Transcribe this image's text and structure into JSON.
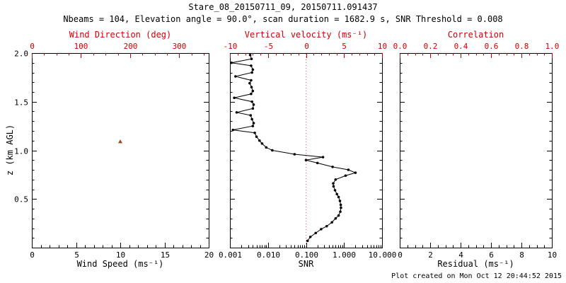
{
  "title": "Stare_08_20150711_09, 20150711.091437",
  "subtitle": "Nbeams = 104, Elevation angle = 90.0°, scan duration = 1682.9 s, SNR Threshold = 0.008",
  "footer": "Plot created on Mon Oct 12 20:44:52 2015",
  "colors": {
    "red": "#cc0000",
    "black": "#000000",
    "marker": "#000000",
    "wind_marker": "#994422",
    "vline": "#dd6666"
  },
  "chart_data": [
    {
      "id": "wind",
      "type": "scatter",
      "xlabel": "Wind Speed (ms⁻¹)",
      "x2label": "Wind Direction (deg)",
      "ylabel": "z (km AGL)",
      "xlim": [
        0,
        20
      ],
      "x2lim": [
        0,
        360
      ],
      "ylim": [
        0,
        2
      ],
      "xticks": {
        "values": [
          0,
          5,
          10,
          15,
          20
        ],
        "labels": [
          "0",
          "5",
          "10",
          "15",
          "20"
        ],
        "minor": 1
      },
      "x2ticks": {
        "values": [
          0,
          100,
          200,
          300
        ],
        "labels": [
          "0",
          "100",
          "200",
          "300"
        ],
        "minor": 25
      },
      "yticks": {
        "values": [
          0,
          0.5,
          1,
          1.5,
          2
        ],
        "labels": [
          "",
          "0.5",
          "1.0",
          "1.5",
          "2.0"
        ],
        "minor": 0.1
      },
      "points": [
        {
          "x": 10.0,
          "z": 1.09,
          "marker": "triangle"
        }
      ]
    },
    {
      "id": "snr",
      "type": "line",
      "xlabel": "SNR",
      "x2label": "Vertical velocity (ms⁻¹)",
      "xscale": "log",
      "xlim": [
        0.001,
        10
      ],
      "x2lim": [
        -10,
        10
      ],
      "ylim": [
        0,
        2
      ],
      "xticks": {
        "values": [
          0.001,
          0.01,
          0.1,
          1,
          10
        ],
        "labels": [
          "0.001",
          "0.010",
          "0.100",
          "1.000",
          "10.000"
        ]
      },
      "x2ticks": {
        "values": [
          -10,
          -5,
          0,
          5,
          10
        ],
        "labels": [
          "-10",
          "-5",
          "0",
          "5",
          "10"
        ],
        "minor": 1
      },
      "yticks": {
        "values": [
          0,
          0.5,
          1,
          1.5,
          2
        ],
        "labels": null,
        "minor": 0.1
      },
      "vline_x": 0.1,
      "series": [
        {
          "name": "snr-profile",
          "points": [
            [
              0.11,
              0.07
            ],
            [
              0.13,
              0.11
            ],
            [
              0.18,
              0.15
            ],
            [
              0.25,
              0.19
            ],
            [
              0.35,
              0.22
            ],
            [
              0.48,
              0.26
            ],
            [
              0.6,
              0.3
            ],
            [
              0.72,
              0.33
            ],
            [
              0.8,
              0.37
            ],
            [
              0.83,
              0.41
            ],
            [
              0.82,
              0.44
            ],
            [
              0.78,
              0.48
            ],
            [
              0.72,
              0.52
            ],
            [
              0.65,
              0.55
            ],
            [
              0.58,
              0.59
            ],
            [
              0.53,
              0.63
            ],
            [
              0.52,
              0.66
            ],
            [
              0.6,
              0.7
            ],
            [
              1.1,
              0.74
            ],
            [
              2.0,
              0.77
            ],
            [
              1.3,
              0.8
            ],
            [
              0.5,
              0.83
            ],
            [
              0.2,
              0.87
            ],
            [
              0.1,
              0.9
            ],
            [
              0.28,
              0.93
            ],
            [
              0.05,
              0.96
            ],
            [
              0.013,
              1.0
            ],
            [
              0.009,
              1.03
            ],
            [
              0.007,
              1.07
            ],
            [
              0.006,
              1.1
            ],
            [
              0.005,
              1.14
            ],
            [
              0.0045,
              1.18
            ],
            [
              0.0012,
              1.21
            ],
            [
              0.004,
              1.25
            ],
            [
              0.0042,
              1.28
            ],
            [
              0.0038,
              1.32
            ],
            [
              0.0035,
              1.36
            ],
            [
              0.0015,
              1.39
            ],
            [
              0.004,
              1.43
            ],
            [
              0.0042,
              1.47
            ],
            [
              0.0038,
              1.5
            ],
            [
              0.0013,
              1.54
            ],
            [
              0.0036,
              1.58
            ],
            [
              0.004,
              1.61
            ],
            [
              0.0037,
              1.65
            ],
            [
              0.0033,
              1.69
            ],
            [
              0.0036,
              1.72
            ],
            [
              0.0014,
              1.76
            ],
            [
              0.0038,
              1.8
            ],
            [
              0.004,
              1.83
            ],
            [
              0.0036,
              1.87
            ],
            [
              0.0011,
              1.9
            ],
            [
              0.0037,
              1.94
            ],
            [
              0.0034,
              1.98
            ]
          ]
        }
      ]
    },
    {
      "id": "residual",
      "type": "empty",
      "xlabel": "Residual (ms⁻¹)",
      "x2label": "Correlation",
      "xlim": [
        0,
        10
      ],
      "x2lim": [
        0,
        1
      ],
      "ylim": [
        0,
        2
      ],
      "xticks": {
        "values": [
          0,
          2,
          4,
          6,
          8,
          10
        ],
        "labels": [
          "0",
          "2",
          "4",
          "6",
          "8",
          "10"
        ],
        "minor": 0.5
      },
      "x2ticks": {
        "values": [
          0,
          0.2,
          0.4,
          0.6,
          0.8,
          1.0
        ],
        "labels": [
          "0.0",
          "0.2",
          "0.4",
          "0.6",
          "0.8",
          "1.0"
        ],
        "minor": 0.05
      },
      "yticks": {
        "values": [
          0,
          0.5,
          1,
          1.5,
          2
        ],
        "labels": null,
        "minor": 0.1
      }
    }
  ]
}
